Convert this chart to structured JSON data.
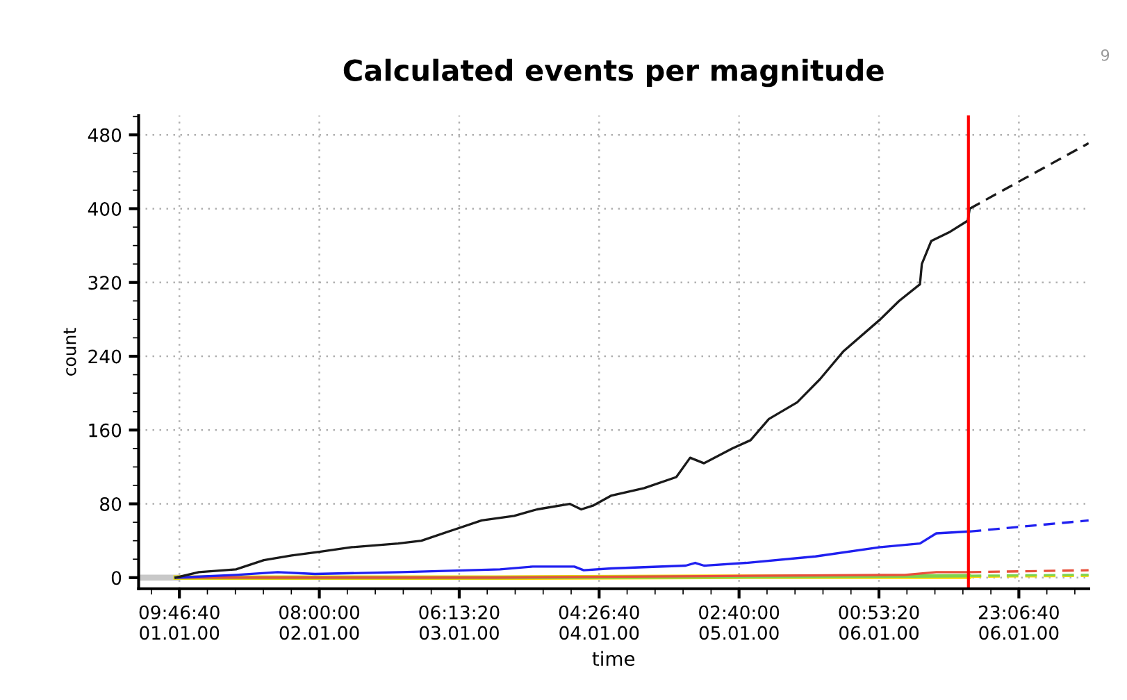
{
  "chart_data": {
    "type": "line",
    "title": "Calculated events per magnitude",
    "xlabel": "time",
    "ylabel": "count",
    "annotations": [
      "9"
    ],
    "xlim": [
      "2000-01-01T03:18",
      "2000-01-07T10:12"
    ],
    "ylim": [
      -12,
      501
    ],
    "xticks": [
      {
        "value": "2000-01-01T09:46:40",
        "label": "09:46:40\n01.01.00"
      },
      {
        "value": "2000-01-02T08:00:00",
        "label": "08:00:00\n02.01.00"
      },
      {
        "value": "2000-01-03T06:13:20",
        "label": "06:13:20\n03.01.00"
      },
      {
        "value": "2000-01-04T04:26:40",
        "label": "04:26:40\n04.01.00"
      },
      {
        "value": "2000-01-05T02:40:00",
        "label": "02:40:00\n05.01.00"
      },
      {
        "value": "2000-01-06T00:53:20",
        "label": "00:53:20\n06.01.00"
      },
      {
        "value": "2000-01-06T23:06:40",
        "label": "23:06:40\n06.01.00"
      }
    ],
    "yticks": [
      0,
      80,
      160,
      240,
      320,
      400,
      480
    ],
    "grid": true,
    "marker": "none",
    "ref_lines": [
      {
        "axis": "x",
        "value": "2000-01-06T15:06",
        "color": "#ff0000",
        "line_style": "solid"
      }
    ],
    "series": [
      {
        "color": "#c8c8c8",
        "line_style": "solid",
        "x": [
          "2000-01-01T03:18",
          "2000-01-01T09:12"
        ],
        "values": [
          0,
          0
        ]
      },
      {
        "color": "#ffd700",
        "line_style": "solid",
        "x": [
          "2000-01-01T09:12",
          "2000-01-03T12:00",
          "2000-01-05T04:00",
          "2000-01-06T15:12"
        ],
        "values": [
          0,
          0,
          1,
          1
        ]
      },
      {
        "color": "#7fd34e",
        "line_style": "solid",
        "x": [
          "2000-01-01T09:12",
          "2000-01-03T12:00",
          "2000-01-05T04:00",
          "2000-01-06T15:12"
        ],
        "values": [
          0,
          0,
          1,
          2
        ]
      },
      {
        "color": "#e8503a",
        "line_style": "solid",
        "x": [
          "2000-01-01T09:12",
          "2000-01-03T12:00",
          "2000-01-05T04:00",
          "2000-01-06T05:00",
          "2000-01-06T10:00",
          "2000-01-06T15:12"
        ],
        "values": [
          0,
          0,
          2,
          3,
          6,
          6
        ]
      },
      {
        "color": "#2020f0",
        "line_style": "solid",
        "x": [
          "2000-01-01T09:12",
          "2000-01-01T18:46",
          "2000-01-02T01:24",
          "2000-01-02T07:18",
          "2000-01-02T21:00",
          "2000-01-03T12:42",
          "2000-01-03T17:54",
          "2000-01-04T00:30",
          "2000-01-04T02:00",
          "2000-01-04T06:24",
          "2000-01-04T18:12",
          "2000-01-04T19:42",
          "2000-01-04T21:06",
          "2000-01-05T03:48",
          "2000-01-05T14:48",
          "2000-01-06T01:06",
          "2000-01-06T07:24",
          "2000-01-06T10:00",
          "2000-01-06T15:12"
        ],
        "values": [
          0,
          3,
          6,
          4,
          6,
          9,
          12,
          12,
          8,
          10,
          13,
          16,
          13,
          16,
          23,
          33,
          37,
          48,
          50
        ]
      },
      {
        "color": "#1a1a1a",
        "line_style": "solid",
        "x": [
          "2000-01-01T09:12",
          "2000-01-01T12:52",
          "2000-01-01T18:46",
          "2000-01-01T23:11",
          "2000-01-02T03:36",
          "2000-01-02T08:00",
          "2000-01-02T13:10",
          "2000-01-02T20:32",
          "2000-01-03T00:13",
          "2000-01-03T05:24",
          "2000-01-03T09:47",
          "2000-01-03T14:56",
          "2000-01-03T18:36",
          "2000-01-03T23:46",
          "2000-01-04T01:36",
          "2000-01-04T03:27",
          "2000-01-04T06:24",
          "2000-01-04T11:36",
          "2000-01-04T16:42",
          "2000-01-04T18:54",
          "2000-01-04T21:06",
          "2000-01-05T01:36",
          "2000-01-05T04:30",
          "2000-01-05T07:24",
          "2000-01-05T11:54",
          "2000-01-05T15:30",
          "2000-01-05T19:12",
          "2000-01-06T01:06",
          "2000-01-06T04:06",
          "2000-01-06T07:24",
          "2000-01-06T07:42",
          "2000-01-06T09:12",
          "2000-01-06T12:12",
          "2000-01-06T15:00",
          "2000-01-06T15:18"
        ],
        "values": [
          0,
          6,
          9,
          19,
          24,
          28,
          33,
          37,
          40,
          52,
          62,
          67,
          74,
          80,
          74,
          78,
          89,
          97,
          109,
          130,
          124,
          140,
          149,
          172,
          190,
          215,
          245,
          280,
          300,
          318,
          340,
          365,
          375,
          387,
          400
        ]
      },
      {
        "color": "#ffd700",
        "line_style": "dashed",
        "x": [
          "2000-01-06T15:18",
          "2000-01-07T10:12"
        ],
        "values": [
          1,
          2
        ]
      },
      {
        "color": "#7fd34e",
        "line_style": "dashed",
        "x": [
          "2000-01-06T15:18",
          "2000-01-07T10:12"
        ],
        "values": [
          2,
          3
        ]
      },
      {
        "color": "#e8503a",
        "line_style": "dashed",
        "x": [
          "2000-01-06T15:18",
          "2000-01-07T10:12"
        ],
        "values": [
          6,
          8
        ]
      },
      {
        "color": "#2020f0",
        "line_style": "dashed",
        "x": [
          "2000-01-06T15:18",
          "2000-01-07T10:12"
        ],
        "values": [
          50,
          62
        ]
      },
      {
        "color": "#1a1a1a",
        "line_style": "dashed",
        "x": [
          "2000-01-06T15:18",
          "2000-01-07T10:12"
        ],
        "values": [
          400,
          471
        ]
      }
    ]
  }
}
